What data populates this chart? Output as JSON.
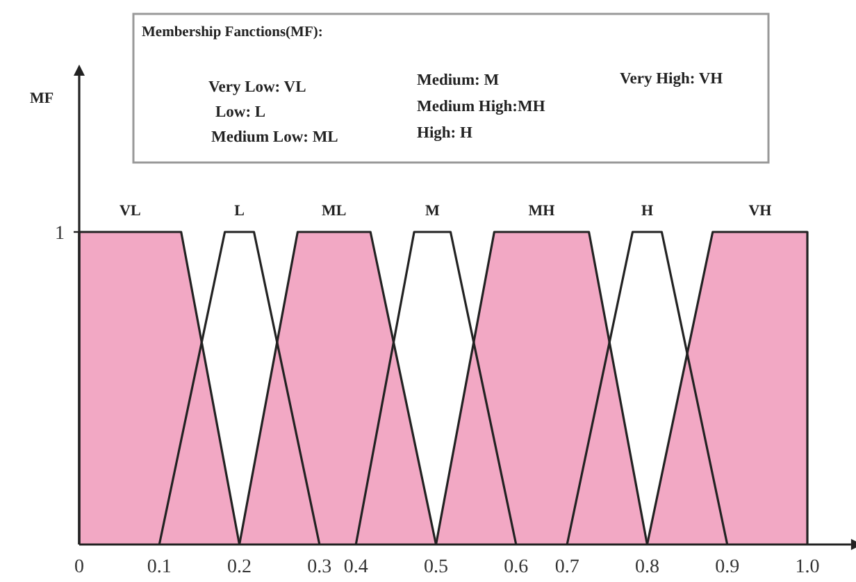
{
  "chart_data": {
    "type": "area",
    "ylabel": "MF",
    "xlim": [
      0,
      1.06
    ],
    "ylim": [
      0,
      1.5
    ],
    "xticks": [
      0,
      {
        "value": 0.11,
        "label": "0.1"
      },
      {
        "value": 0.22,
        "label": "0.2"
      },
      {
        "value": 0.33,
        "label": "0.3"
      },
      {
        "value": 0.38,
        "label": "0.4"
      },
      {
        "value": 0.49,
        "label": "0.5"
      },
      {
        "value": 0.6,
        "label": "0.6"
      },
      {
        "value": 0.67,
        "label": "0.7"
      },
      {
        "value": 0.78,
        "label": "0.8"
      },
      {
        "value": 0.89,
        "label": "0.9"
      },
      {
        "value": 1,
        "label": "1.0"
      }
    ],
    "yticks": [
      1
    ],
    "grid": false,
    "annotations": [
      "Membership Fanctions(MF):",
      "Very Low: VL",
      "Low: L",
      "Medium Low: ML",
      "Medium: M",
      "Medium High:MH",
      "High: H",
      "Very High: VH"
    ],
    "series": [
      {
        "name": "VL",
        "color": "#f2a8c4",
        "x": [
          0,
          0,
          0.14,
          0.22
        ],
        "values": [
          0,
          1,
          1,
          0
        ]
      },
      {
        "name": "L",
        "color": "#ffffff",
        "x": [
          0.11,
          0.2,
          0.24,
          0.33
        ],
        "values": [
          0,
          1,
          1,
          0
        ]
      },
      {
        "name": "ML",
        "color": "#f2a8c4",
        "x": [
          0.22,
          0.3,
          0.4,
          0.49
        ],
        "values": [
          0,
          1,
          1,
          0
        ]
      },
      {
        "name": "M",
        "color": "#ffffff",
        "x": [
          0.38,
          0.46,
          0.51,
          0.6
        ],
        "values": [
          0,
          1,
          1,
          0
        ]
      },
      {
        "name": "MH",
        "color": "#f2a8c4",
        "x": [
          0.49,
          0.57,
          0.7,
          0.78
        ],
        "values": [
          0,
          1,
          1,
          0
        ]
      },
      {
        "name": "H",
        "color": "#ffffff",
        "x": [
          0.67,
          0.76,
          0.8,
          0.89
        ],
        "values": [
          0,
          1,
          1,
          0
        ]
      },
      {
        "name": "VH",
        "color": "#f2a8c4",
        "x": [
          0.78,
          0.87,
          1,
          1
        ],
        "values": [
          0,
          1,
          1,
          0
        ]
      }
    ]
  }
}
